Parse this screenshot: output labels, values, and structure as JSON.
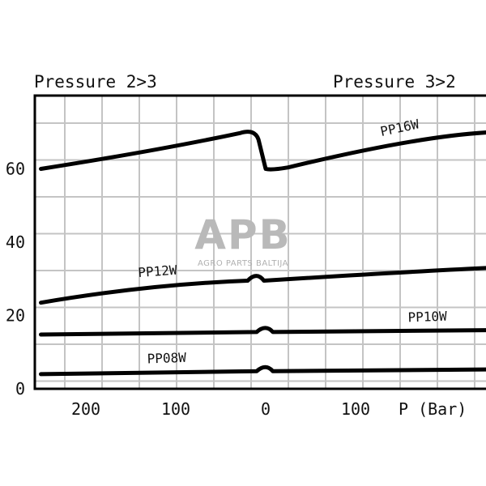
{
  "chart_data": {
    "type": "line",
    "title_left": "Pressure 2>3",
    "title_right": "Pressure 3>2",
    "xlabel": "P (Bar)",
    "x_ticks_left": [
      "200",
      "100",
      "0"
    ],
    "x_ticks_right": [
      "0",
      "100"
    ],
    "y_ticks": [
      "0",
      "20",
      "40",
      "60"
    ],
    "ylim": [
      0,
      80
    ],
    "grid": true,
    "x": [
      -250,
      -100,
      -15,
      0,
      100,
      250
    ],
    "series": [
      {
        "name": "PP16W",
        "values": [
          60,
          66,
          70,
          60,
          64,
          70
        ]
      },
      {
        "name": "PP12W",
        "values": [
          23.5,
          27.5,
          30,
          29.5,
          31,
          33
        ]
      },
      {
        "name": "PP10W",
        "values": [
          14.8,
          15.1,
          15.3,
          15.5,
          15.7,
          16
        ]
      },
      {
        "name": "PP08W",
        "values": [
          4,
          4.4,
          4.6,
          4.8,
          5,
          5.3
        ]
      }
    ],
    "watermark": {
      "logo": "APB",
      "text": "AGRO PARTS BALTIJA"
    }
  }
}
